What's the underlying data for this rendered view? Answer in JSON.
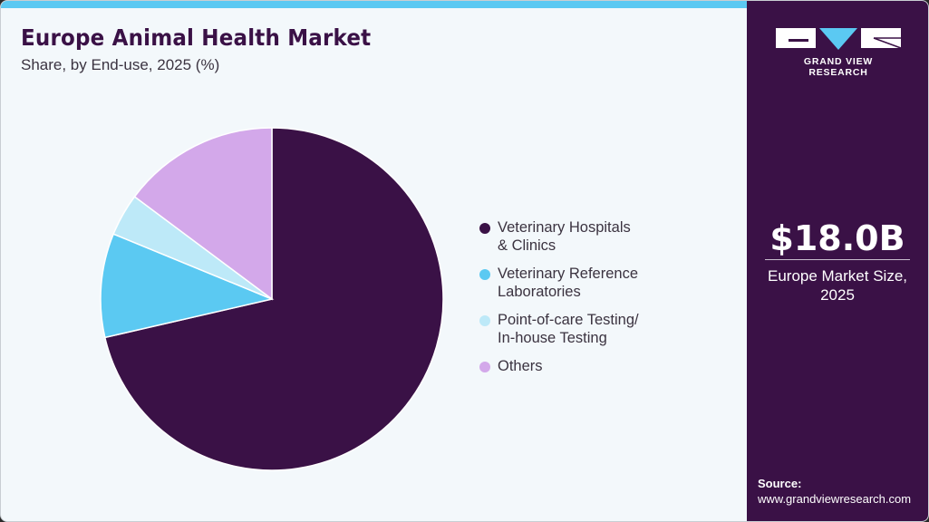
{
  "header": {
    "title": "Europe Animal Health Market",
    "subtitle": "Share, by End-use, 2025 (%)"
  },
  "brand": {
    "logo_text": "GRAND VIEW RESEARCH",
    "accent_color": "#5bc9f2",
    "panel_color": "#3a1146"
  },
  "side_panel": {
    "market_value": "$18.0B",
    "market_label": "Europe Market Size,\n2025",
    "source_label": "Source:",
    "source_url": "www.grandviewresearch.com"
  },
  "legend": {
    "items": [
      {
        "label": "Veterinary Hospitals\n& Clinics",
        "color": "#3a1146"
      },
      {
        "label": "Veterinary Reference\nLaboratories",
        "color": "#5bc9f2"
      },
      {
        "label": "Point-of-care Testing/\nIn-house Testing",
        "color": "#bde9f8"
      },
      {
        "label": "Others",
        "color": "#d3a8ea"
      }
    ]
  },
  "chart_data": {
    "type": "pie",
    "title": "Europe Animal Health Market",
    "subtitle": "Share, by End-use, 2025 (%)",
    "categories": [
      "Veterinary Hospitals & Clinics",
      "Veterinary Reference Laboratories",
      "Point-of-care Testing/In-house Testing",
      "Others"
    ],
    "values": [
      71.4,
      9.8,
      4.0,
      14.8
    ],
    "colors": [
      "#3a1146",
      "#5bc9f2",
      "#bde9f8",
      "#d3a8ea"
    ],
    "start_angle": "12 o'clock, clockwise",
    "legend_position": "right",
    "annotations": [
      "$18.0B Europe Market Size, 2025"
    ]
  }
}
